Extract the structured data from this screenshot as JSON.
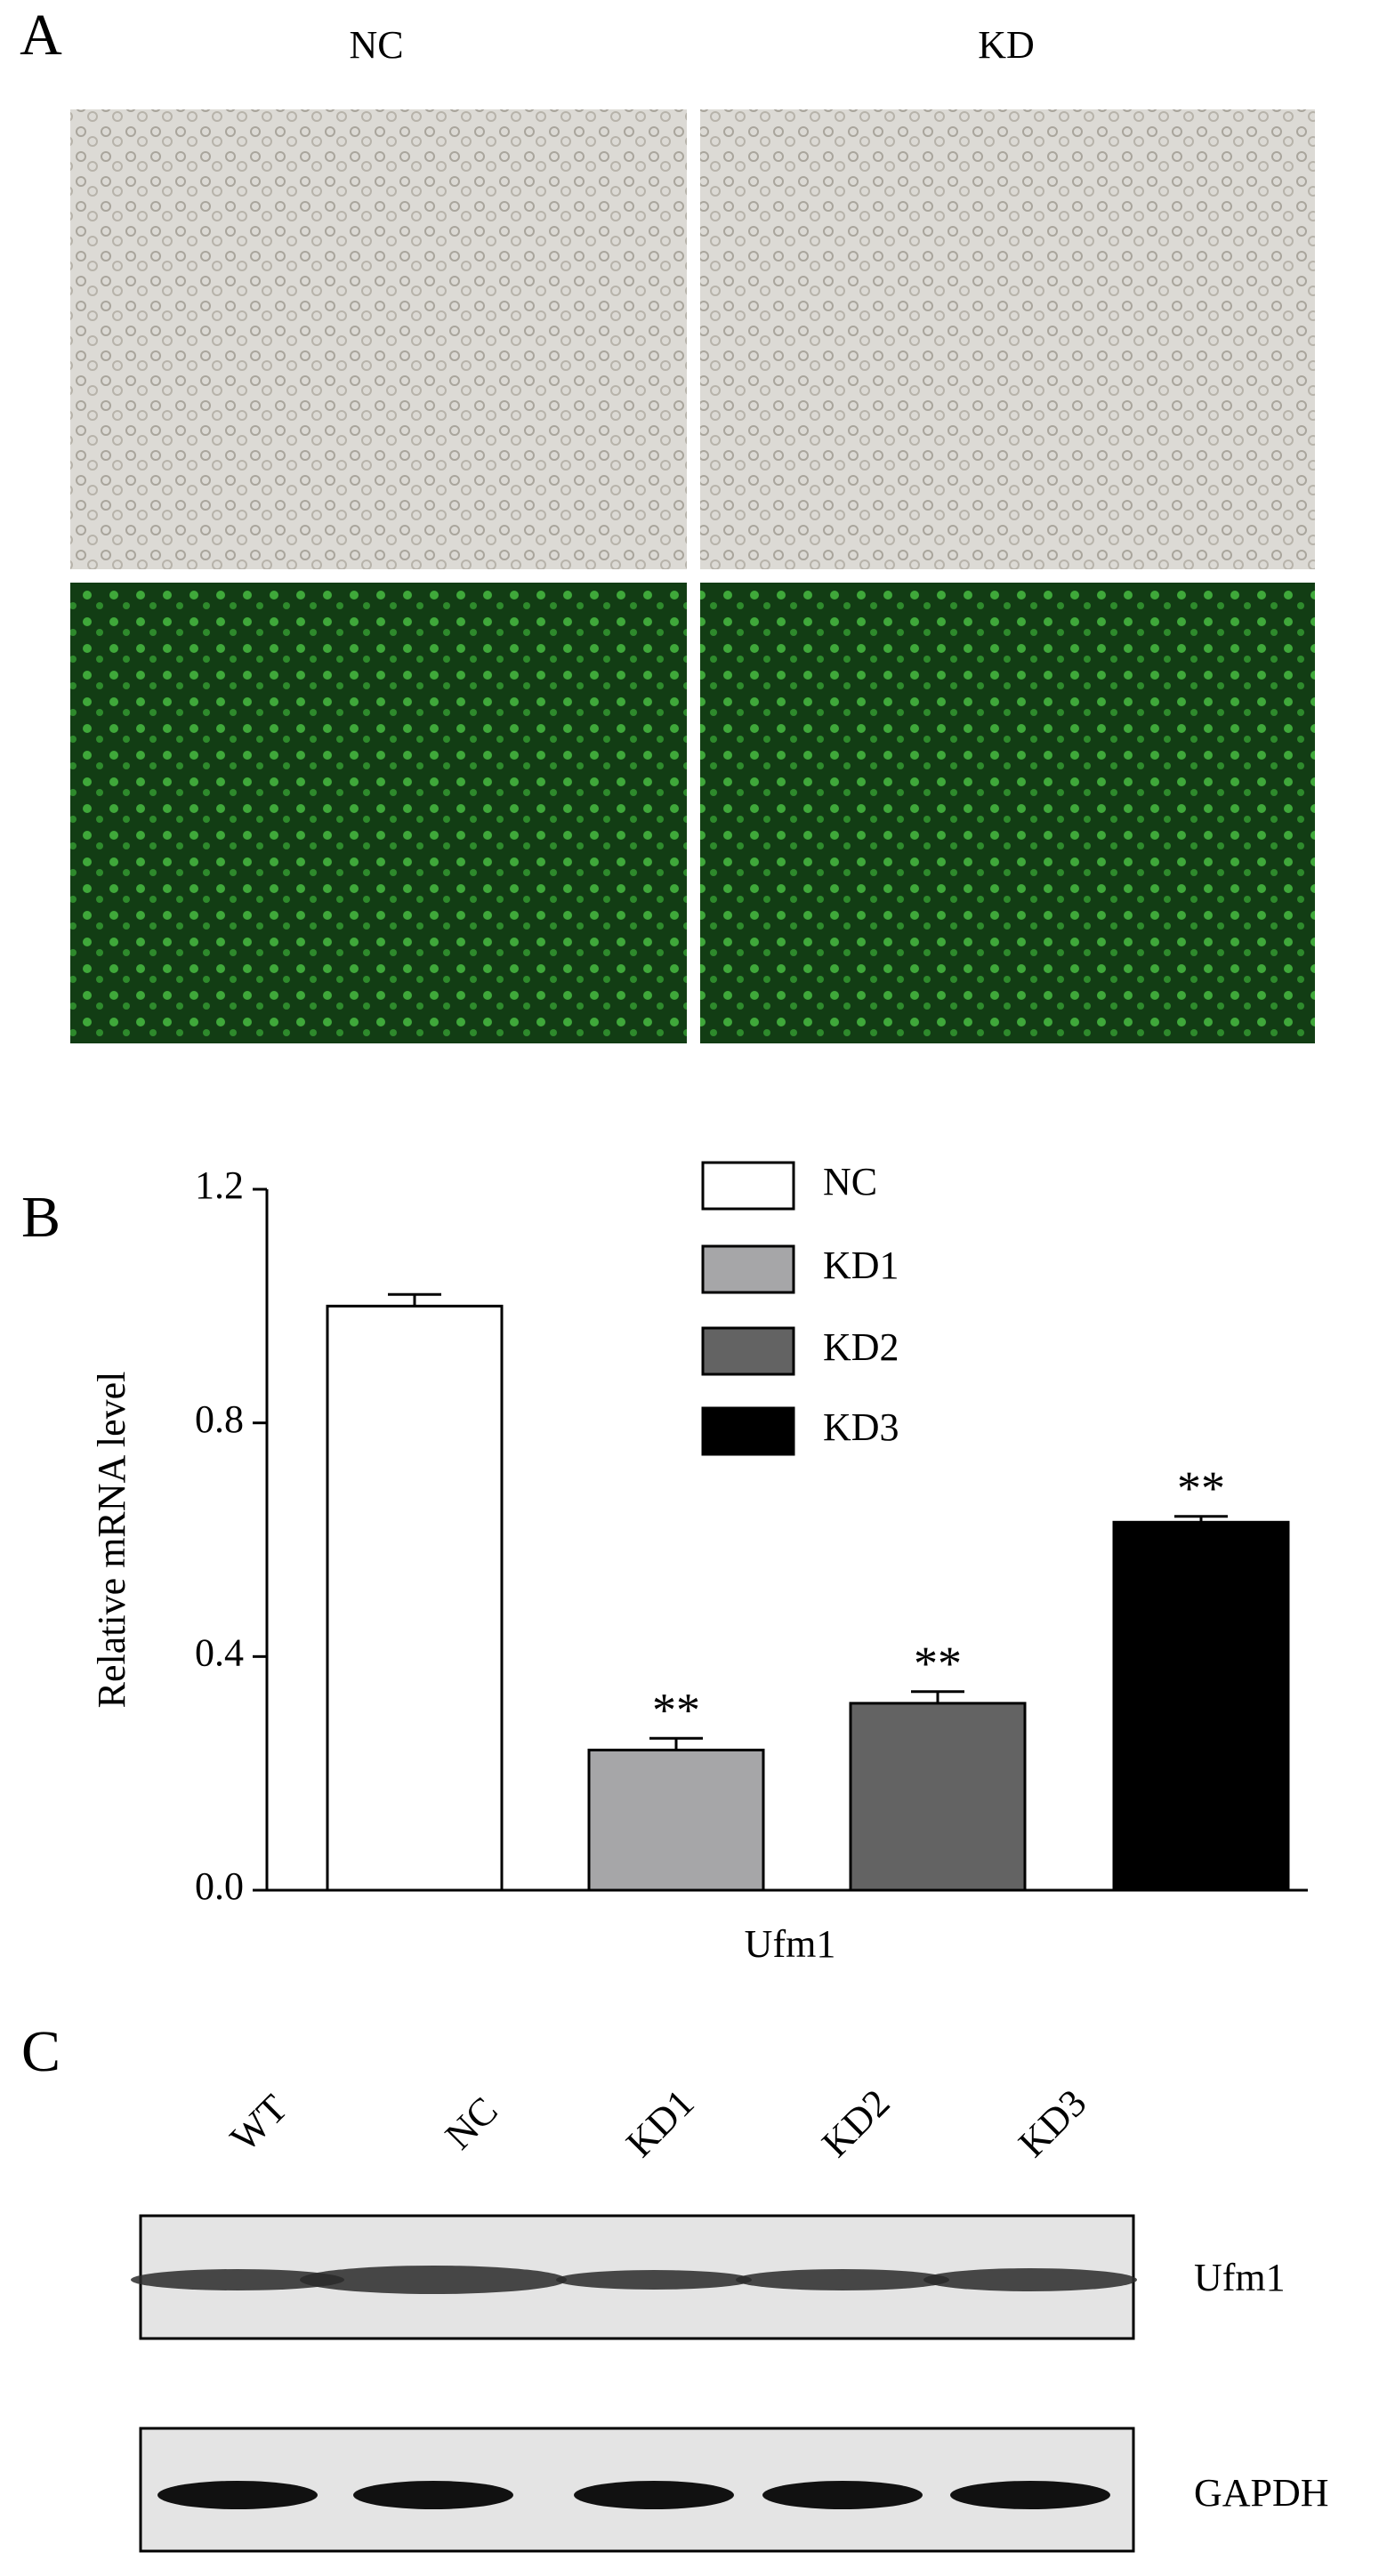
{
  "panel_labels": [
    "A",
    "B",
    "C"
  ],
  "panel_a": {
    "columns": [
      "NC",
      "KD"
    ]
  },
  "chart_data": {
    "type": "bar",
    "y_label": "Relative mRNA level",
    "x_label": "Ufm1",
    "categories": [
      "Ufm1"
    ],
    "series": [
      {
        "name": "NC",
        "color": "#ffffff",
        "values": [
          1.0
        ],
        "errors": [
          0.02
        ]
      },
      {
        "name": "KD1",
        "color": "#a6a6a8",
        "values": [
          0.24
        ],
        "errors": [
          0.02
        ],
        "annotation": "**"
      },
      {
        "name": "KD2",
        "color": "#636363",
        "values": [
          0.32
        ],
        "errors": [
          0.02
        ],
        "annotation": "**"
      },
      {
        "name": "KD3",
        "color": "#000000",
        "values": [
          0.63
        ],
        "errors": [
          0.01
        ],
        "annotation": "**"
      }
    ],
    "ylim": [
      0,
      1.2
    ],
    "yticks": [
      {
        "value": 0,
        "label": "0.0"
      },
      0.4,
      0.8,
      1.2
    ],
    "grid": false
  },
  "panel_c": {
    "lanes": [
      "WT",
      "NC",
      "KD1",
      "KD2",
      "KD3"
    ],
    "bands": [
      "Ufm1",
      "GAPDH"
    ]
  }
}
